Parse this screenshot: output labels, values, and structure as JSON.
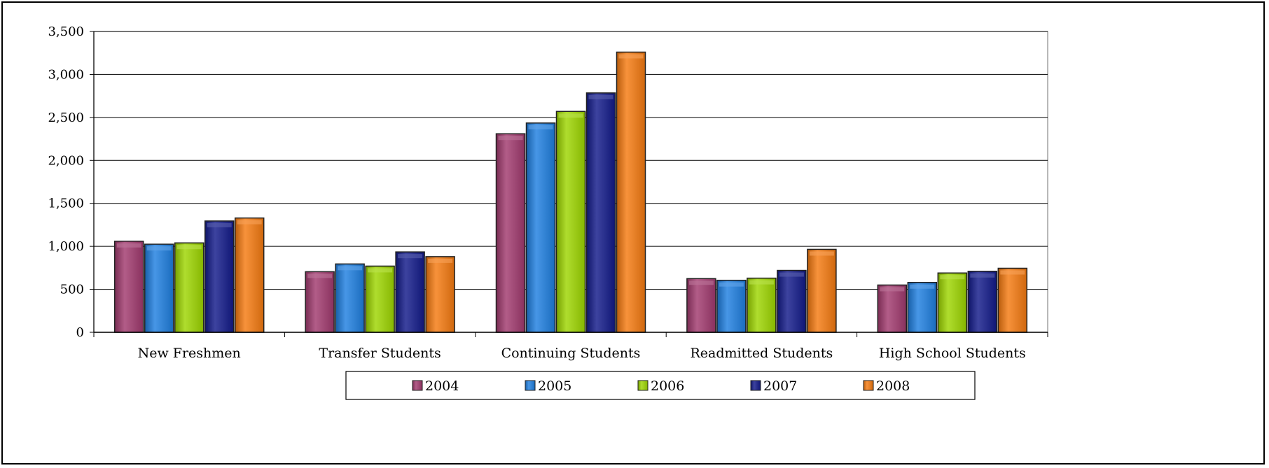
{
  "chart_data": {
    "type": "bar",
    "title": "",
    "xlabel": "",
    "ylabel": "",
    "ylim": [
      0,
      3500
    ],
    "y_tick_step": 500,
    "y_ticks": [
      "0",
      "500",
      "1,000",
      "1,500",
      "2,000",
      "2,500",
      "3,000",
      "3,500"
    ],
    "grid": true,
    "legend_position": "bottom",
    "categories": [
      "New Freshmen",
      "Transfer Students",
      "Continuing Students",
      "Readmitted Students",
      "High School Students"
    ],
    "series": [
      {
        "name": "2004",
        "color": "#a13a6e",
        "values": [
          1060,
          705,
          2310,
          625,
          550
        ]
      },
      {
        "name": "2005",
        "color": "#1f7fe0",
        "values": [
          1025,
          795,
          2435,
          605,
          580
        ]
      },
      {
        "name": "2006",
        "color": "#9ed600",
        "values": [
          1040,
          770,
          2570,
          630,
          690
        ]
      },
      {
        "name": "2007",
        "color": "#121a8a",
        "values": [
          1295,
          935,
          2785,
          720,
          710
        ]
      },
      {
        "name": "2008",
        "color": "#f57a10",
        "values": [
          1330,
          880,
          3260,
          965,
          745
        ]
      }
    ]
  }
}
